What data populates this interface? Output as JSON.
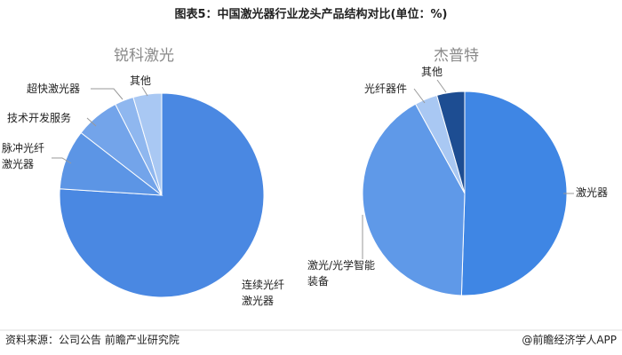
{
  "header": {
    "title": "图表5：中国激光器行业龙头产品结构对比(单位：%)"
  },
  "chart_data": [
    {
      "type": "pie",
      "title": "锐科激光",
      "categories": [
        "连续光纤\n激光器",
        "脉冲光纤\n激光器",
        "技术开发服务",
        "超快激光器",
        "其他"
      ],
      "values": [
        76,
        9.5,
        7,
        3,
        4.5
      ],
      "colors": [
        "#4a88e2",
        "#5c95e5",
        "#73a4ea",
        "#8fb7ef",
        "#a9c8f3"
      ]
    },
    {
      "type": "pie",
      "title": "杰普特",
      "categories": [
        "激光器",
        "激光/光学智能\n装备",
        "光纤器件",
        "其他"
      ],
      "values": [
        50.5,
        41.5,
        3.6,
        4.4
      ],
      "colors": [
        "#3f86e4",
        "#5f99e8",
        "#a9c8f3",
        "#1d4d92"
      ]
    }
  ],
  "footer": {
    "source": "资料来源：公司公告 前瞻产业研究院",
    "credit": "@前瞻经济学人APP"
  }
}
